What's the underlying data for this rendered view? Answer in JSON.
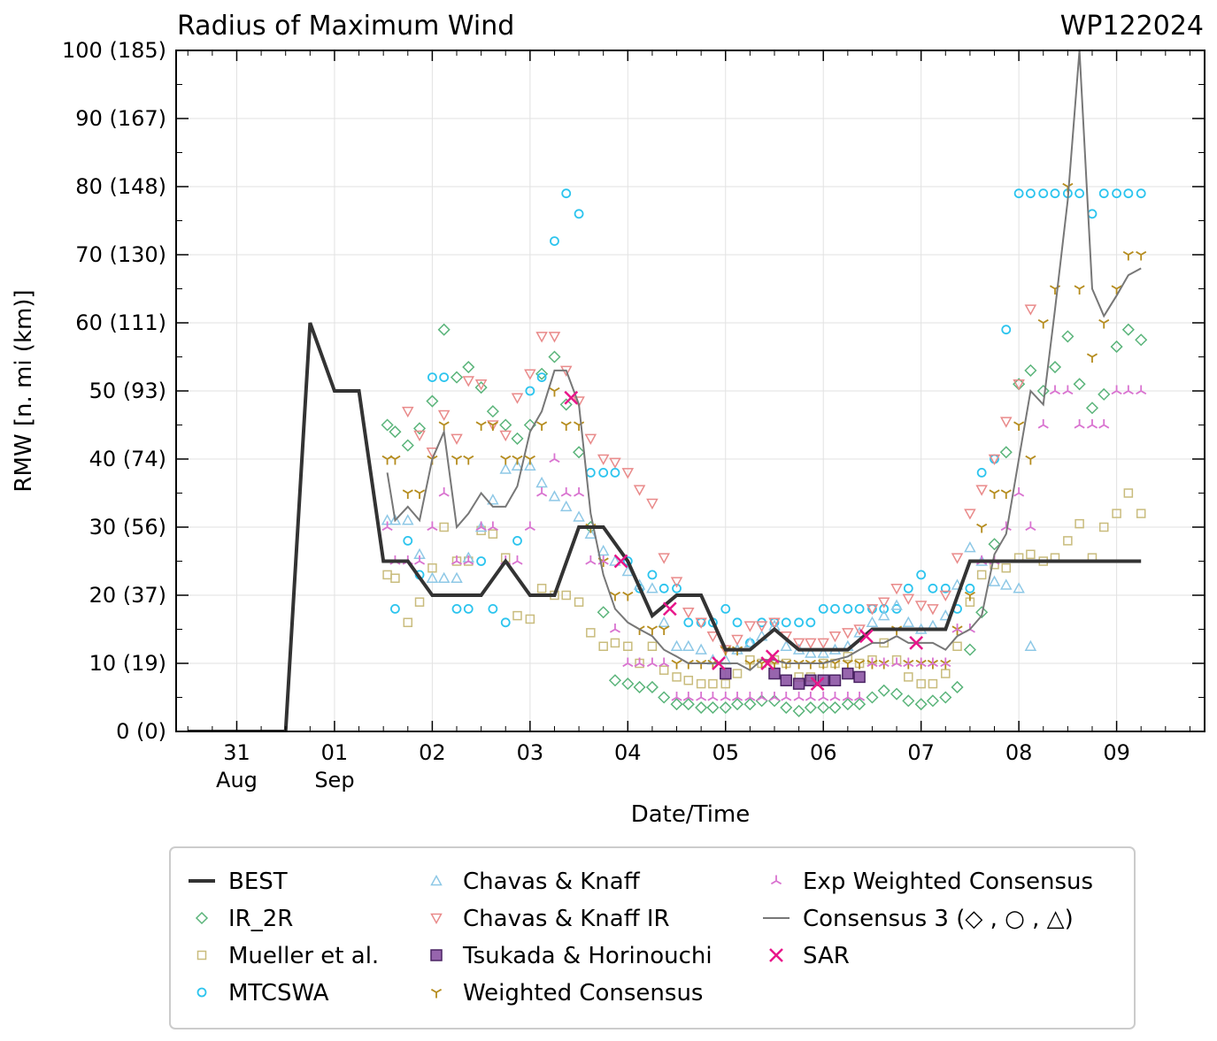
{
  "chart_data": {
    "type": "scatter",
    "title": "Radius of Maximum Wind",
    "storm_id": "WP122024",
    "xlabel": "Date/Time",
    "ylabel": "RMW [n. mi (km)]",
    "xlim": [
      -0.62,
      9.9
    ],
    "ylim": [
      0,
      100
    ],
    "x_units": "days since 2024-08-31 00Z",
    "x_ticks": [
      {
        "x": 0,
        "day": "31",
        "month": "Aug"
      },
      {
        "x": 1,
        "day": "01",
        "month": "Sep"
      },
      {
        "x": 2,
        "day": "02",
        "month": ""
      },
      {
        "x": 3,
        "day": "03",
        "month": ""
      },
      {
        "x": 4,
        "day": "04",
        "month": ""
      },
      {
        "x": 5,
        "day": "05",
        "month": ""
      },
      {
        "x": 6,
        "day": "06",
        "month": ""
      },
      {
        "x": 7,
        "day": "07",
        "month": ""
      },
      {
        "x": 8,
        "day": "08",
        "month": ""
      },
      {
        "x": 9,
        "day": "09",
        "month": ""
      }
    ],
    "y_ticks": [
      {
        "y": 0,
        "label": "0 (0)"
      },
      {
        "y": 10,
        "label": "10 (19)"
      },
      {
        "y": 20,
        "label": "20 (37)"
      },
      {
        "y": 30,
        "label": "30 (56)"
      },
      {
        "y": 40,
        "label": "40 (74)"
      },
      {
        "y": 50,
        "label": "50 (93)"
      },
      {
        "y": 60,
        "label": "60 (111)"
      },
      {
        "y": 70,
        "label": "70 (130)"
      },
      {
        "y": 80,
        "label": "80 (148)"
      },
      {
        "y": 90,
        "label": "90 (167)"
      },
      {
        "y": 100,
        "label": "100 (185)"
      }
    ],
    "grid": true,
    "series": [
      {
        "name": "BEST",
        "key": "best",
        "marker": "line",
        "color": "#333333",
        "x": [
          -0.5,
          0.5,
          0.75,
          1.0,
          1.25,
          1.5,
          1.75,
          2.0,
          2.25,
          2.5,
          2.75,
          3.0,
          3.25,
          3.5,
          3.75,
          4.0,
          4.25,
          4.5,
          4.75,
          5.0,
          5.25,
          5.5,
          5.75,
          6.0,
          6.25,
          6.5,
          6.75,
          7.0,
          7.25,
          7.5,
          7.75,
          8.0,
          8.25,
          8.5,
          8.75,
          9.0,
          9.25
        ],
        "y": [
          0,
          0,
          60,
          50,
          50,
          25,
          25,
          20,
          20,
          20,
          25,
          20,
          20,
          30,
          30,
          25,
          17,
          20,
          20,
          12,
          12,
          15,
          12,
          12,
          12,
          15,
          15,
          15,
          15,
          25,
          25,
          25,
          25,
          25,
          25,
          25,
          25
        ]
      },
      {
        "name": "IR_2R",
        "key": "ir2r",
        "marker": "diamond",
        "color": "#5ab47a",
        "x": [
          1.54,
          1.62,
          1.75,
          1.87,
          2.0,
          2.12,
          2.25,
          2.37,
          2.5,
          2.62,
          2.75,
          2.87,
          3.0,
          3.12,
          3.25,
          3.37,
          3.5,
          3.62,
          3.75,
          3.87,
          4.0,
          4.12,
          4.25,
          4.37,
          4.5,
          4.62,
          4.75,
          4.87,
          5.0,
          5.12,
          5.25,
          5.37,
          5.5,
          5.62,
          5.75,
          5.87,
          6.0,
          6.12,
          6.25,
          6.37,
          6.5,
          6.62,
          6.75,
          6.87,
          7.0,
          7.12,
          7.25,
          7.37,
          7.5,
          7.62,
          7.75,
          7.87,
          8.0,
          8.12,
          8.25,
          8.37,
          8.5,
          8.62,
          8.75,
          8.87,
          9.0,
          9.12,
          9.25
        ],
        "y": [
          45,
          44,
          42,
          44.5,
          48.5,
          59,
          52,
          53.5,
          50.5,
          47,
          45,
          43,
          45,
          52.5,
          55,
          48,
          41,
          30,
          17.5,
          7.5,
          7,
          6.5,
          6.5,
          5,
          4,
          4,
          3.5,
          3.5,
          3.5,
          4,
          4,
          4.5,
          4.5,
          3.5,
          3,
          3.5,
          3.5,
          3.5,
          4,
          4,
          5,
          6,
          5.5,
          4.5,
          4,
          4.5,
          5,
          6.5,
          12,
          17.5,
          27.5,
          41,
          51,
          53,
          50,
          53.5,
          58,
          51,
          47.5,
          49.5,
          56.5,
          59,
          57.5
        ]
      },
      {
        "name": "Mueller et al.",
        "key": "mueller",
        "marker": "square",
        "color": "#c9bc7d",
        "x": [
          1.54,
          1.62,
          1.75,
          1.87,
          2.0,
          2.12,
          2.25,
          2.37,
          2.5,
          2.62,
          2.75,
          2.87,
          3.0,
          3.12,
          3.25,
          3.37,
          3.5,
          3.62,
          3.75,
          3.87,
          4.0,
          4.12,
          4.25,
          4.37,
          4.5,
          4.62,
          4.75,
          4.87,
          5.0,
          5.12,
          5.25,
          5.37,
          5.5,
          5.62,
          5.75,
          5.87,
          6.0,
          6.12,
          6.25,
          6.37,
          6.5,
          6.62,
          6.75,
          6.87,
          7.0,
          7.12,
          7.25,
          7.37,
          7.5,
          7.62,
          7.75,
          7.87,
          8.0,
          8.12,
          8.25,
          8.37,
          8.5,
          8.62,
          8.75,
          8.87,
          9.0,
          9.12,
          9.25
        ],
        "y": [
          23,
          22.5,
          16,
          19,
          24,
          30,
          25,
          25,
          29.5,
          29,
          25.5,
          17,
          16.5,
          21,
          20,
          20,
          19,
          14.5,
          12.5,
          13,
          12.5,
          10,
          12.5,
          9,
          8,
          7.5,
          7,
          7,
          7,
          8.5,
          10.5,
          10,
          10.5,
          10,
          8,
          8,
          10,
          10,
          11,
          10,
          10.5,
          13,
          10.5,
          8,
          7,
          7,
          8.5,
          12.5,
          19,
          23,
          24.5,
          24,
          25.5,
          26,
          25,
          25.5,
          28,
          30.5,
          25.5,
          30,
          32,
          35,
          32
        ]
      },
      {
        "name": "MTCSWA",
        "key": "mtcswa",
        "marker": "circle",
        "color": "#2cc4ee",
        "x": [
          1.62,
          1.75,
          1.87,
          2.0,
          2.12,
          2.25,
          2.37,
          2.5,
          2.62,
          2.75,
          2.87,
          3.0,
          3.12,
          3.25,
          3.37,
          3.5,
          3.62,
          3.75,
          3.87,
          4.0,
          4.12,
          4.25,
          4.37,
          4.5,
          4.62,
          4.75,
          4.87,
          5.0,
          5.12,
          5.25,
          5.37,
          5.5,
          5.62,
          5.75,
          5.87,
          6.0,
          6.12,
          6.25,
          6.37,
          6.5,
          6.62,
          6.75,
          6.87,
          7.0,
          7.12,
          7.25,
          7.37,
          7.5,
          7.62,
          7.75,
          7.87,
          8.0,
          8.12,
          8.25,
          8.37,
          8.5,
          8.62,
          8.75,
          8.87,
          9.0,
          9.12,
          9.25
        ],
        "y": [
          18,
          28,
          23,
          52,
          52,
          18,
          18,
          25,
          18,
          16,
          28,
          50,
          52,
          72,
          79,
          76,
          38,
          38,
          38,
          25,
          21,
          23,
          21,
          21,
          16,
          16,
          16,
          18,
          16,
          13,
          16,
          16,
          16,
          16,
          16,
          18,
          18,
          18,
          18,
          18,
          18,
          18,
          21,
          23,
          21,
          21,
          18,
          21,
          38,
          40,
          59,
          79,
          79,
          79,
          79,
          79,
          79,
          76,
          79,
          79,
          79,
          79
        ]
      },
      {
        "name": "Chavas & Knaff",
        "key": "ck",
        "marker": "triangle-up",
        "color": "#8ec8e6",
        "x": [
          1.54,
          1.62,
          1.75,
          1.87,
          2.0,
          2.12,
          2.25,
          2.37,
          2.5,
          2.62,
          2.75,
          2.87,
          3.0,
          3.12,
          3.25,
          3.37,
          3.5,
          3.62,
          3.75,
          3.87,
          4.0,
          4.12,
          4.25,
          4.37,
          4.5,
          4.62,
          4.75,
          4.87,
          5.0,
          5.12,
          5.25,
          5.37,
          5.5,
          5.62,
          5.75,
          5.87,
          6.0,
          6.12,
          6.25,
          6.37,
          6.5,
          6.62,
          6.75,
          6.87,
          7.0,
          7.12,
          7.25,
          7.37,
          7.5,
          7.62,
          7.75,
          7.87,
          8.0,
          8.12
        ],
        "y": [
          31,
          31,
          31,
          26,
          22.5,
          22.5,
          22.5,
          25.5,
          30,
          34,
          38.5,
          39,
          39,
          36.5,
          34.5,
          33,
          31.5,
          29,
          26.5,
          25,
          23.5,
          21.5,
          21,
          16,
          12.5,
          12.5,
          12,
          10.5,
          10.5,
          12,
          13,
          14,
          15.5,
          12.5,
          12,
          11.5,
          11.5,
          12,
          12.5,
          14.5,
          16,
          17,
          18.5,
          16,
          15,
          15.5,
          17,
          21.5,
          27,
          25,
          22,
          21.5,
          21,
          12.5
        ]
      },
      {
        "name": "Chavas & Knaff IR",
        "key": "ckir",
        "marker": "triangle-down",
        "color": "#e98a8a",
        "x": [
          1.75,
          1.87,
          2.0,
          2.12,
          2.25,
          2.37,
          2.5,
          2.62,
          2.75,
          2.87,
          3.0,
          3.12,
          3.25,
          3.37,
          3.5,
          3.62,
          3.75,
          3.87,
          4.0,
          4.12,
          4.25,
          4.37,
          4.5,
          4.62,
          4.75,
          4.87,
          5.0,
          5.12,
          5.25,
          5.37,
          5.5,
          5.62,
          5.75,
          5.87,
          6.0,
          6.12,
          6.25,
          6.37,
          6.5,
          6.62,
          6.75,
          6.87,
          7.0,
          7.12,
          7.25,
          7.37,
          7.5,
          7.62,
          7.75,
          7.87,
          8.0,
          8.12
        ],
        "y": [
          47,
          43.5,
          41,
          46.5,
          43,
          51.5,
          51,
          45,
          43.5,
          49,
          52.5,
          58,
          58,
          53,
          48.5,
          43,
          40,
          39.5,
          38,
          35.5,
          33.5,
          25.5,
          22,
          17.5,
          16,
          14,
          12,
          13.5,
          15.5,
          15.5,
          16,
          14,
          13,
          13,
          13,
          14,
          14.5,
          15,
          18,
          19,
          21,
          19.5,
          18.5,
          18,
          20,
          25.5,
          32,
          35.5,
          40,
          45.5,
          51,
          62
        ]
      },
      {
        "name": "Tsukada & Horinouchi",
        "key": "tsukada",
        "marker": "square-filled",
        "color": "#7d3f98",
        "x": [
          5.0,
          5.5,
          5.62,
          5.75,
          5.87,
          6.0,
          6.12,
          6.25,
          6.37
        ],
        "y": [
          8.5,
          8.5,
          7.5,
          7,
          7.5,
          7.5,
          7.5,
          8.5,
          8
        ]
      },
      {
        "name": "Weighted Consensus",
        "key": "wc",
        "marker": "tri-down",
        "color": "#b58c1e",
        "x": [
          1.54,
          1.62,
          1.75,
          1.87,
          2.0,
          2.12,
          2.25,
          2.37,
          2.5,
          2.62,
          2.75,
          2.87,
          3.0,
          3.12,
          3.25,
          3.37,
          3.5,
          3.62,
          3.75,
          3.87,
          4.0,
          4.12,
          4.25,
          4.37,
          4.5,
          4.62,
          4.75,
          4.87,
          5.0,
          5.12,
          5.25,
          5.37,
          5.5,
          5.62,
          5.75,
          5.87,
          6.0,
          6.12,
          6.25,
          6.37,
          6.5,
          6.62,
          6.75,
          6.87,
          7.0,
          7.12,
          7.25,
          7.37,
          7.5,
          7.62,
          7.75,
          7.87,
          8.0,
          8.12,
          8.25,
          8.37,
          8.5,
          8.62,
          8.75,
          8.87,
          9.0,
          9.12,
          9.25
        ],
        "y": [
          40,
          40,
          35,
          35,
          40,
          45,
          40,
          40,
          45,
          45,
          40,
          40,
          40,
          45,
          50,
          45,
          45,
          30,
          25,
          20,
          20,
          15,
          15,
          15,
          10,
          10,
          10,
          10,
          12,
          12,
          10,
          10,
          10,
          10,
          10,
          10,
          10,
          10,
          10,
          10,
          10,
          10,
          15,
          10,
          10,
          10,
          10,
          15,
          20,
          30,
          35,
          35,
          45,
          40,
          60,
          65,
          80,
          65,
          55,
          60,
          65,
          70,
          70
        ]
      },
      {
        "name": "Exp Weighted Consensus",
        "key": "ewc",
        "marker": "tri-up",
        "color": "#d973d0",
        "x": [
          1.54,
          1.62,
          1.75,
          1.87,
          2.0,
          2.12,
          2.25,
          2.37,
          2.5,
          2.62,
          2.75,
          2.87,
          3.0,
          3.12,
          3.25,
          3.37,
          3.5,
          3.62,
          3.75,
          3.87,
          4.0,
          4.12,
          4.25,
          4.37,
          4.5,
          4.62,
          4.75,
          4.87,
          5.0,
          5.12,
          5.25,
          5.37,
          5.5,
          5.62,
          5.75,
          5.87,
          6.0,
          6.12,
          6.25,
          6.37,
          6.5,
          6.62,
          6.75,
          6.87,
          7.0,
          7.12,
          7.25,
          7.37,
          7.5,
          7.62,
          7.75,
          7.87,
          8.0,
          8.12,
          8.25,
          8.37,
          8.5,
          8.62,
          8.75,
          8.87,
          9.0,
          9.12,
          9.25
        ],
        "y": [
          30,
          25,
          25,
          25,
          30,
          35,
          25,
          25,
          30,
          30,
          25,
          25,
          30,
          35,
          40,
          35,
          35,
          25,
          25,
          15,
          10,
          10,
          10,
          10,
          5,
          5,
          5,
          5,
          5,
          5,
          5,
          5,
          5,
          5,
          5,
          5,
          5,
          5,
          5,
          5,
          10,
          10,
          10,
          10,
          10,
          10,
          10,
          15,
          15,
          25,
          25,
          30,
          35,
          30,
          45,
          50,
          50,
          45,
          45,
          45,
          50,
          50,
          50
        ]
      },
      {
        "name": "Consensus 3 (◇ , ○ , △)",
        "key": "cons3",
        "marker": "thin-line",
        "color": "#777777",
        "x": [
          1.54,
          1.62,
          1.75,
          1.87,
          2.0,
          2.12,
          2.25,
          2.37,
          2.5,
          2.62,
          2.75,
          2.87,
          3.0,
          3.12,
          3.25,
          3.37,
          3.5,
          3.62,
          3.75,
          3.87,
          4.0,
          4.12,
          4.25,
          4.37,
          4.5,
          4.62,
          4.75,
          4.87,
          5.0,
          5.12,
          5.25,
          5.37,
          5.5,
          5.62,
          5.75,
          5.87,
          6.0,
          6.12,
          6.25,
          6.37,
          6.5,
          6.62,
          6.75,
          6.87,
          7.0,
          7.12,
          7.25,
          7.37,
          7.5,
          7.62,
          7.75,
          7.87,
          8.0,
          8.12,
          8.25,
          8.37,
          8.5,
          8.62,
          8.75,
          8.87,
          9.0,
          9.12,
          9.25
        ],
        "y": [
          38,
          31,
          33,
          31,
          40,
          44,
          30,
          32,
          35,
          33,
          33,
          36,
          44,
          47,
          53,
          53,
          48,
          32,
          23,
          18,
          16,
          15,
          14,
          12,
          11,
          10,
          10,
          10,
          10,
          10,
          9,
          10.5,
          10.5,
          10,
          10,
          10,
          10,
          10.5,
          11,
          12,
          13,
          13,
          14,
          13,
          13,
          13,
          12,
          14,
          15,
          17,
          26,
          29,
          40,
          50,
          48,
          62,
          78,
          100,
          65,
          61,
          64,
          67,
          68
        ]
      },
      {
        "name": "SAR",
        "key": "sar",
        "marker": "x",
        "color": "#e8168a",
        "x": [
          3.42,
          3.93,
          4.43,
          4.93,
          5.43,
          5.48,
          5.94,
          6.44,
          6.95
        ],
        "y": [
          49,
          25,
          18,
          10,
          10,
          11,
          7,
          14,
          13
        ]
      }
    ]
  }
}
